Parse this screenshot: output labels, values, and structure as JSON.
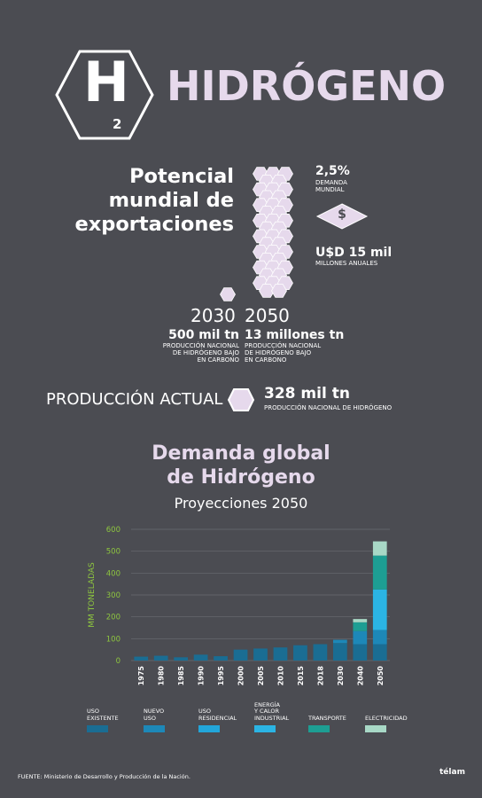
{
  "header": {
    "symbol": "H",
    "subscript": "2",
    "title": "HIDRÓGENO"
  },
  "potential": {
    "heading": "Potencial mundial de exportaciones",
    "demand_value": "2,5%",
    "demand_label": "DEMANDA MUNDIAL",
    "money_value": "U$D 15 mil",
    "money_label": "MILLONES ANUALES",
    "dollar_sign": "$",
    "year_2030": "2030",
    "year_2050": "2050",
    "prod_2030_value": "500 mil tn",
    "prod_2030_label_1": "PRODUCCIÓN NACIONAL",
    "prod_2030_label_2": "DE HIDRÓGENO BAJO",
    "prod_2030_label_3": "EN CARBONO",
    "prod_2050_value": "13 millones tn",
    "prod_2050_label_1": "PRODUCCIÓN NACIONAL",
    "prod_2050_label_2": "DE HIDRÓGENO BAJO",
    "prod_2050_label_3": "EN CARBONO"
  },
  "current": {
    "label": "PRODUCCIÓN ACTUAL",
    "value": "328 mil tn",
    "sub": "PRODUCCIÓN NACIONAL DE HIDRÓGENO"
  },
  "chart_section": {
    "title_1": "Demanda global",
    "title_2": "de Hidrógeno",
    "subtitle": "Proyecciones  2050"
  },
  "chart_data": {
    "type": "bar",
    "stacked": true,
    "ylabel": "MM TONELADAS",
    "ylim": [
      0,
      600
    ],
    "yticks": [
      0,
      100,
      200,
      300,
      400,
      500,
      600
    ],
    "grid": true,
    "categories": [
      "1975",
      "1980",
      "1985",
      "1990",
      "1995",
      "2000",
      "2005",
      "2010",
      "2015",
      "2018",
      "2030",
      "2040",
      "2050"
    ],
    "series": [
      {
        "name": "USO EXISTENTE",
        "color": "#1a6d93",
        "values": [
          18,
          22,
          15,
          27,
          20,
          50,
          55,
          60,
          70,
          75,
          80,
          75,
          75
        ]
      },
      {
        "name": "NUEVO USO",
        "color": "#1d88b8",
        "values": [
          0,
          0,
          0,
          0,
          0,
          0,
          0,
          0,
          0,
          0,
          15,
          60,
          65
        ]
      },
      {
        "name": "USO RESIDENCIAL",
        "color": "#22a6da",
        "values": [
          0,
          0,
          0,
          0,
          0,
          0,
          0,
          0,
          0,
          0,
          0,
          0,
          0
        ]
      },
      {
        "name": "ENERGÍA Y CALOR INDUSTRIAL",
        "color": "#2bb4e4",
        "values": [
          0,
          0,
          0,
          0,
          0,
          0,
          0,
          0,
          0,
          0,
          0,
          0,
          185
        ]
      },
      {
        "name": "TRANSPORTE",
        "color": "#1d9e93",
        "values": [
          0,
          0,
          0,
          0,
          0,
          0,
          0,
          0,
          0,
          0,
          0,
          40,
          155
        ]
      },
      {
        "name": "ELECTRICIDAD",
        "color": "#a8d8c6",
        "values": [
          0,
          0,
          0,
          0,
          0,
          0,
          0,
          0,
          0,
          0,
          0,
          15,
          65
        ]
      }
    ]
  },
  "legend": {
    "items": [
      {
        "line1": "USO",
        "line2": "EXISTENTE",
        "line3": "",
        "color": "#1a6d93"
      },
      {
        "line1": "NUEVO",
        "line2": "USO",
        "line3": "",
        "color": "#1d88b8"
      },
      {
        "line1": "USO",
        "line2": "RESIDENCIAL",
        "line3": "",
        "color": "#22a6da"
      },
      {
        "line1": "ENERGÍA",
        "line2": "Y CALOR",
        "line3": "INDUSTRIAL",
        "color": "#2bb4e4"
      },
      {
        "line1": "",
        "line2": "TRANSPORTE",
        "line3": "",
        "color": "#1d9e93"
      },
      {
        "line1": "",
        "line2": "ELECTRICIDAD",
        "line3": "",
        "color": "#a8d8c6"
      }
    ]
  },
  "footer": {
    "source": "FUENTE:  Ministerio de Desarrollo y Producción de la Nación.",
    "logo": "télam"
  },
  "colors": {
    "background": "#4b4c52",
    "accent_pink": "#e6d9ec",
    "hex_fill": "#e6d9ec",
    "axis_green": "#8ec63f"
  }
}
